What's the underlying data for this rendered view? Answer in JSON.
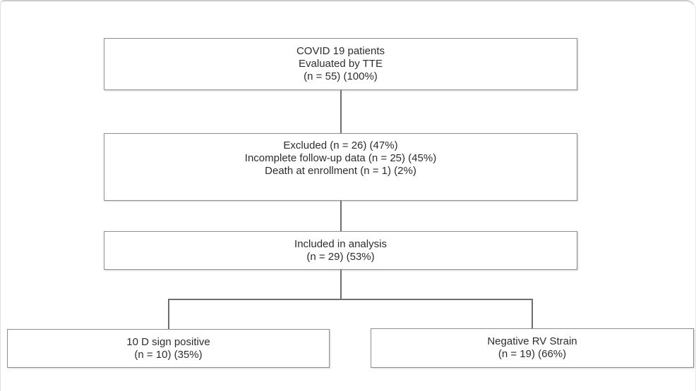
{
  "flowchart": {
    "boxes": {
      "covid": {
        "lines": [
          "COVID 19 patients",
          "Evaluated by TTE",
          "(n = 55) (100%)"
        ]
      },
      "excluded": {
        "lines": [
          "Excluded (n = 26) (47%)",
          "Incomplete follow-up data (n = 25) (45%)",
          "Death at enrollment (n = 1) (2%)"
        ]
      },
      "included": {
        "lines": [
          "Included in analysis",
          "(n = 29) (53%)"
        ]
      },
      "d_sign_positive": {
        "lines": [
          "10 D sign positive",
          "(n = 10) (35%)"
        ]
      },
      "negative_rv_strain": {
        "lines": [
          "Negative RV Strain",
          "(n = 19) (66%)"
        ]
      }
    },
    "colors": {
      "background": "#ffffff",
      "box_border": "#8f8f8f",
      "connector_line": "#6f6f6f",
      "text": "#2d2d2d",
      "frame_border": "#cbcbcb"
    }
  }
}
